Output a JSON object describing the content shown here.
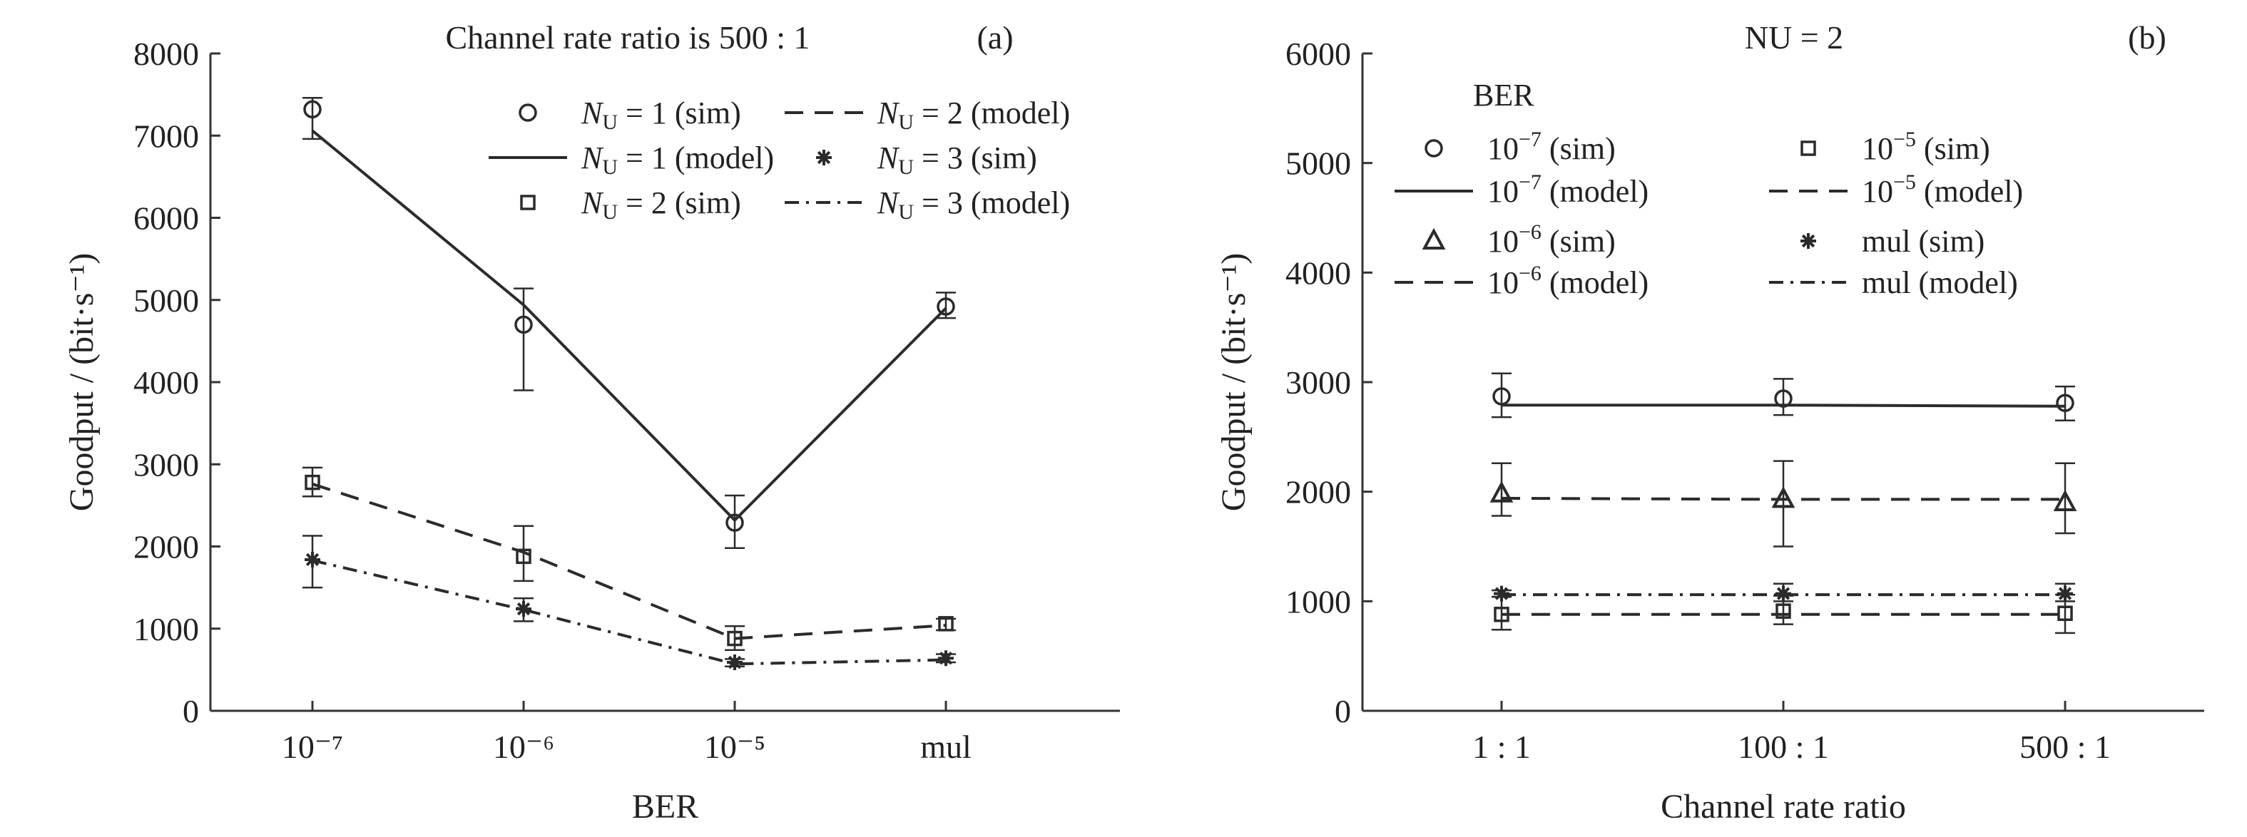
{
  "chart_data": [
    {
      "type": "line",
      "panel_label": "(a)",
      "title": "Channel rate ratio is 500 : 1",
      "xlabel": "BER",
      "ylabel": "Goodput / (bit·s⁻¹)",
      "ylim": [
        0,
        8000
      ],
      "yticks": [
        0,
        1000,
        2000,
        3000,
        4000,
        5000,
        6000,
        7000,
        8000
      ],
      "categories": [
        "10⁻⁷",
        "10⁻⁶",
        "10⁻⁵",
        "mul"
      ],
      "legend_position": "top-right",
      "series": [
        {
          "name": "NU=1 (sim)",
          "kind": "sim",
          "marker": "circle",
          "values": [
            7320,
            4700,
            2290,
            4920
          ],
          "err_low": [
            6960,
            3900,
            1980,
            4780
          ],
          "err_high": [
            7460,
            5140,
            2620,
            5090
          ]
        },
        {
          "name": "NU=1 (model)",
          "kind": "model",
          "dash": "solid",
          "values": [
            7060,
            4940,
            2320,
            4900
          ]
        },
        {
          "name": "NU=2 (sim)",
          "kind": "sim",
          "marker": "square",
          "values": [
            2780,
            1880,
            880,
            1060
          ],
          "err_low": [
            2610,
            1580,
            740,
            980
          ],
          "err_high": [
            2960,
            2250,
            1030,
            1120
          ]
        },
        {
          "name": "NU=2 (model)",
          "kind": "model",
          "dash": "dash",
          "values": [
            2760,
            1930,
            880,
            1040
          ]
        },
        {
          "name": "NU=3 (sim)",
          "kind": "sim",
          "marker": "star",
          "values": [
            1840,
            1240,
            590,
            640
          ],
          "err_low": [
            1500,
            1090,
            540,
            590
          ],
          "err_high": [
            2130,
            1370,
            630,
            690
          ]
        },
        {
          "name": "NU=3 (model)",
          "kind": "model",
          "dash": "dashdot",
          "values": [
            1830,
            1230,
            570,
            620
          ]
        }
      ],
      "legend_entries": [
        {
          "series": 0,
          "sub": "U",
          "lead": "N",
          "rest": " = 1 (sim)"
        },
        {
          "series": 1,
          "sub": "U",
          "lead": "N",
          "rest": " = 1 (model)"
        },
        {
          "series": 2,
          "sub": "U",
          "lead": "N",
          "rest": " = 2 (sim)"
        },
        {
          "series": 3,
          "sub": "U",
          "lead": "N",
          "rest": " = 2 (model)"
        },
        {
          "series": 4,
          "sub": "U",
          "lead": "N",
          "rest": " = 3 (sim)"
        },
        {
          "series": 5,
          "sub": "U",
          "lead": "N",
          "rest": " = 3 (model)"
        }
      ]
    },
    {
      "type": "line",
      "panel_label": "(b)",
      "title": "NU = 2",
      "xlabel": "Channel rate ratio",
      "ylabel": "Goodput / (bit·s⁻¹)",
      "ylim": [
        0,
        6000
      ],
      "yticks": [
        0,
        1000,
        2000,
        3000,
        4000,
        5000,
        6000
      ],
      "categories": [
        "1 : 1",
        "100 : 1",
        "500 : 1"
      ],
      "legend_title": "BER",
      "legend_position": "top-left",
      "series": [
        {
          "name": "10⁻⁷ (sim)",
          "kind": "sim",
          "marker": "circle",
          "values": [
            2870,
            2850,
            2810
          ],
          "err_low": [
            2680,
            2700,
            2650
          ],
          "err_high": [
            3080,
            3030,
            2960
          ]
        },
        {
          "name": "10⁻⁷ (model)",
          "kind": "model",
          "dash": "solid",
          "values": [
            2790,
            2790,
            2780
          ]
        },
        {
          "name": "10⁻⁶ (sim)",
          "kind": "sim",
          "marker": "triangle",
          "values": [
            1980,
            1930,
            1900
          ],
          "err_low": [
            1780,
            1500,
            1620
          ],
          "err_high": [
            2260,
            2280,
            2260
          ]
        },
        {
          "name": "10⁻⁶ (model)",
          "kind": "model",
          "dash": "dash",
          "values": [
            1940,
            1930,
            1930
          ]
        },
        {
          "name": "10⁻⁵ (sim)",
          "kind": "sim",
          "marker": "square",
          "values": [
            880,
            910,
            890
          ],
          "err_low": [
            740,
            790,
            710
          ],
          "err_high": [
            1040,
            1050,
            1060
          ]
        },
        {
          "name": "10⁻⁵ (model)",
          "kind": "model",
          "dash": "dash",
          "values": [
            880,
            880,
            880
          ]
        },
        {
          "name": "mul (sim)",
          "kind": "sim",
          "marker": "star",
          "values": [
            1070,
            1070,
            1070
          ],
          "err_low": [
            1040,
            1000,
            1000
          ],
          "err_high": [
            1100,
            1160,
            1160
          ]
        },
        {
          "name": "mul (model)",
          "kind": "model",
          "dash": "dashdot",
          "values": [
            1060,
            1060,
            1060
          ]
        }
      ],
      "legend_entries": [
        {
          "series": 0,
          "base": "10",
          "sup": "−7",
          "rest": " (sim)"
        },
        {
          "series": 1,
          "base": "10",
          "sup": "−7",
          "rest": " (model)"
        },
        {
          "series": 2,
          "base": "10",
          "sup": "−6",
          "rest": " (sim)"
        },
        {
          "series": 3,
          "base": "10",
          "sup": "−6",
          "rest": " (model)"
        },
        {
          "series": 4,
          "base": "10",
          "sup": "−5",
          "rest": " (sim)"
        },
        {
          "series": 5,
          "base": "10",
          "sup": "−5",
          "rest": " (model)"
        },
        {
          "series": 6,
          "base": "",
          "sup": "",
          "rest": "mul (sim)"
        },
        {
          "series": 7,
          "base": "",
          "sup": "",
          "rest": "mul (model)"
        }
      ]
    }
  ]
}
